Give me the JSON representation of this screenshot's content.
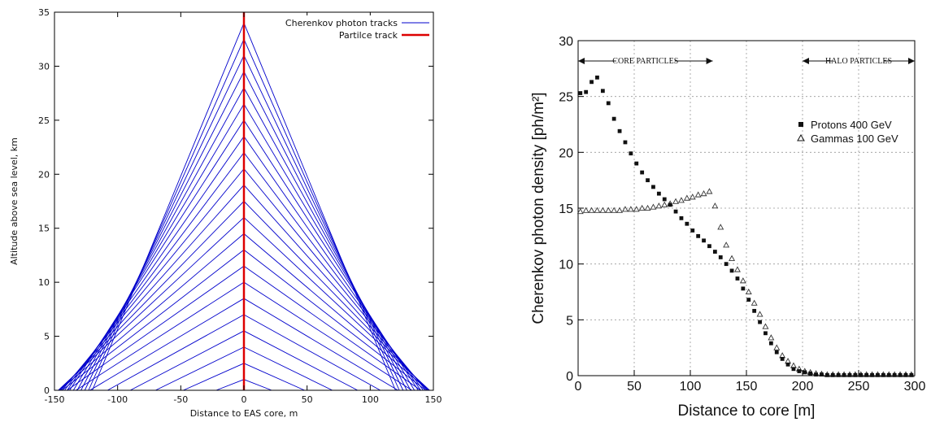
{
  "chart_data": [
    {
      "type": "line",
      "xlabel": "Distance to EAS core, m",
      "ylabel": "Altitude above sea level, km",
      "xlim": [
        -150,
        150
      ],
      "ylim": [
        0,
        35
      ],
      "x_ticks": [
        "-150",
        "-100",
        "-50",
        "0",
        "50",
        "100",
        "150"
      ],
      "y_ticks": [
        "0",
        "5",
        "10",
        "15",
        "20",
        "25",
        "30",
        "35"
      ],
      "legend": [
        "Cherenkov photon tracks",
        "Partilce track"
      ],
      "legend_position": "top-right",
      "grid": false,
      "colors": {
        "photon": "#0000cc",
        "particle": "#dd0000"
      },
      "particle_track": {
        "x": [
          0,
          0
        ],
        "y": [
          0,
          35
        ]
      },
      "photon_track_emission_heights_km": [
        34,
        32.5,
        31,
        29.5,
        28,
        26.5,
        25,
        23.5,
        22,
        20.5,
        19,
        17.5,
        16,
        14.5,
        13,
        11.5,
        10,
        8.5,
        7,
        5.5,
        4,
        2.5,
        1
      ],
      "photon_track_ground_distance_m": [
        120,
        123,
        126,
        129,
        132,
        135,
        138,
        140,
        142,
        144,
        145,
        146,
        147,
        146,
        144,
        140,
        133,
        122,
        108,
        90,
        70,
        48,
        22
      ]
    },
    {
      "type": "scatter",
      "xlabel": "Distance to core [m]",
      "ylabel": "Cherenkov photon density [ph/m²]",
      "xlim": [
        0,
        300
      ],
      "ylim": [
        0,
        30
      ],
      "x_ticks": [
        "0",
        "50",
        "100",
        "150",
        "200",
        "250",
        "300"
      ],
      "y_ticks": [
        "0",
        "5",
        "10",
        "15",
        "20",
        "25",
        "30"
      ],
      "grid": true,
      "legend_position": "top-right",
      "annotations": [
        "CORE PARTICLES",
        "HALO PARTICLES"
      ],
      "annotation_spans": [
        [
          0,
          120
        ],
        [
          200,
          300
        ]
      ],
      "series": [
        {
          "name": "Protons 400 GeV",
          "marker": "square",
          "x": [
            2,
            7,
            12,
            17,
            22,
            27,
            32,
            37,
            42,
            47,
            52,
            57,
            62,
            67,
            72,
            77,
            82,
            87,
            92,
            97,
            102,
            107,
            112,
            117,
            122,
            127,
            132,
            137,
            142,
            147,
            152,
            157,
            162,
            167,
            172,
            177,
            182,
            187,
            192,
            197,
            202,
            207,
            212,
            217,
            222,
            227,
            232,
            237,
            242,
            247,
            252,
            257,
            262,
            267,
            272,
            277,
            282,
            287,
            292,
            297
          ],
          "y": [
            25.3,
            25.4,
            26.3,
            26.7,
            25.5,
            24.4,
            23.0,
            21.9,
            20.9,
            19.9,
            19.0,
            18.2,
            17.5,
            16.9,
            16.3,
            15.8,
            15.3,
            14.7,
            14.1,
            13.6,
            13.0,
            12.5,
            12.1,
            11.6,
            11.1,
            10.6,
            10.0,
            9.4,
            8.7,
            7.8,
            6.8,
            5.8,
            4.8,
            3.8,
            2.9,
            2.1,
            1.5,
            1.0,
            0.6,
            0.4,
            0.3,
            0.2,
            0.1,
            0.1,
            0.05,
            0.05,
            0.05,
            0.05,
            0.05,
            0.05,
            0.05,
            0.05,
            0.05,
            0.05,
            0.05,
            0.05,
            0.05,
            0.05,
            0.05,
            0.05
          ]
        },
        {
          "name": "Gammas 100 GeV",
          "marker": "triangle",
          "x": [
            2,
            7,
            12,
            17,
            22,
            27,
            32,
            37,
            42,
            47,
            52,
            57,
            62,
            67,
            72,
            77,
            82,
            87,
            92,
            97,
            102,
            107,
            112,
            117,
            122,
            127,
            132,
            137,
            142,
            147,
            152,
            157,
            162,
            167,
            172,
            177,
            182,
            187,
            192,
            197,
            202,
            207,
            212,
            217,
            222,
            227,
            232,
            237,
            242,
            247,
            252,
            257,
            262,
            267,
            272,
            277,
            282,
            287,
            292,
            297
          ],
          "y": [
            14.7,
            14.8,
            14.8,
            14.8,
            14.8,
            14.8,
            14.8,
            14.8,
            14.9,
            14.9,
            14.9,
            15.0,
            15.0,
            15.1,
            15.2,
            15.3,
            15.4,
            15.6,
            15.7,
            15.9,
            16.0,
            16.2,
            16.3,
            16.5,
            15.2,
            13.3,
            11.7,
            10.5,
            9.5,
            8.5,
            7.5,
            6.5,
            5.5,
            4.4,
            3.4,
            2.5,
            1.8,
            1.3,
            0.9,
            0.6,
            0.4,
            0.3,
            0.2,
            0.15,
            0.1,
            0.1,
            0.1,
            0.1,
            0.1,
            0.1,
            0.1,
            0.1,
            0.1,
            0.1,
            0.1,
            0.1,
            0.1,
            0.1,
            0.1,
            0.1
          ]
        }
      ]
    }
  ]
}
